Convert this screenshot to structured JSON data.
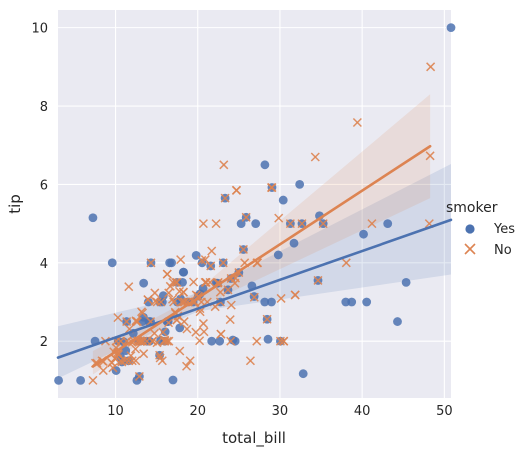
{
  "chart_data": {
    "type": "scatter",
    "xlabel": "total_bill",
    "ylabel": "tip",
    "xlim": [
      3.0,
      50.81
    ],
    "ylim": [
      0.55,
      10.45
    ],
    "xticks": [
      10,
      20,
      30,
      40,
      50
    ],
    "yticks": [
      2,
      4,
      6,
      8,
      10
    ],
    "grid": true,
    "legend": {
      "title": "smoker",
      "placement": "right"
    },
    "series": [
      {
        "name": "Yes",
        "marker": "circle",
        "color": "#4c72b0",
        "fit": {
          "intercept": 1.36,
          "slope": 0.0735
        },
        "ci_band": [
          [
            3.0,
            1.05,
            2.38
          ],
          [
            20.0,
            2.76,
            3.22
          ],
          [
            50.81,
            3.7,
            6.52
          ]
        ],
        "points": [
          [
            3.07,
            1.0
          ],
          [
            5.75,
            1.0
          ],
          [
            7.25,
            5.15
          ],
          [
            7.51,
            2.0
          ],
          [
            9.6,
            4.0
          ],
          [
            10.07,
            1.25
          ],
          [
            10.33,
            2.0
          ],
          [
            10.59,
            1.61
          ],
          [
            10.77,
            1.47
          ],
          [
            11.24,
            1.76
          ],
          [
            11.35,
            2.5
          ],
          [
            11.59,
            1.5
          ],
          [
            12.16,
            2.2
          ],
          [
            12.6,
            1.0
          ],
          [
            12.9,
            1.1
          ],
          [
            13.0,
            2.0
          ],
          [
            13.27,
            2.5
          ],
          [
            13.42,
            3.48
          ],
          [
            13.81,
            2.0
          ],
          [
            14.0,
            3.0
          ],
          [
            14.07,
            2.5
          ],
          [
            14.15,
            2.0
          ],
          [
            14.26,
            2.5
          ],
          [
            14.31,
            4.0
          ],
          [
            15.36,
            1.64
          ],
          [
            15.38,
            3.0
          ],
          [
            15.48,
            2.02
          ],
          [
            15.69,
            3.0
          ],
          [
            16.0,
            2.0
          ],
          [
            16.04,
            2.24
          ],
          [
            16.27,
            2.5
          ],
          [
            16.4,
            2.5
          ],
          [
            16.58,
            4.0
          ],
          [
            16.82,
            4.0
          ],
          [
            17.47,
            3.5
          ],
          [
            17.51,
            3.0
          ],
          [
            17.92,
            3.08
          ],
          [
            18.15,
            3.5
          ],
          [
            18.24,
            3.76
          ],
          [
            18.29,
            3.76
          ],
          [
            18.78,
            3.0
          ],
          [
            19.44,
            3.0
          ],
          [
            19.81,
            4.19
          ],
          [
            20.29,
            3.21
          ],
          [
            20.53,
            4.0
          ],
          [
            20.65,
            3.35
          ],
          [
            21.58,
            3.92
          ],
          [
            22.23,
            3.48
          ],
          [
            22.42,
            3.48
          ],
          [
            22.76,
            3.0
          ],
          [
            23.33,
            5.65
          ],
          [
            23.68,
            3.31
          ],
          [
            24.27,
            2.03
          ],
          [
            24.55,
            2.0
          ],
          [
            25.0,
            3.75
          ],
          [
            25.28,
            5.0
          ],
          [
            25.56,
            4.34
          ],
          [
            25.89,
            5.16
          ],
          [
            26.59,
            3.41
          ],
          [
            26.86,
            3.14
          ],
          [
            27.05,
            5.0
          ],
          [
            28.15,
            3.0
          ],
          [
            28.17,
            6.5
          ],
          [
            28.44,
            2.56
          ],
          [
            28.97,
            3.0
          ],
          [
            29.03,
            5.92
          ],
          [
            29.8,
            4.2
          ],
          [
            30.06,
            2.0
          ],
          [
            30.4,
            5.6
          ],
          [
            31.27,
            5.0
          ],
          [
            31.71,
            4.5
          ],
          [
            32.4,
            6.0
          ],
          [
            32.68,
            5.0
          ],
          [
            32.83,
            1.17
          ],
          [
            34.63,
            3.55
          ],
          [
            34.81,
            5.2
          ],
          [
            35.26,
            5.0
          ],
          [
            38.01,
            3.0
          ],
          [
            38.73,
            3.0
          ],
          [
            40.17,
            4.73
          ],
          [
            40.55,
            3.0
          ],
          [
            43.11,
            5.0
          ],
          [
            44.3,
            2.5
          ],
          [
            45.35,
            3.5
          ],
          [
            50.81,
            10.0
          ],
          [
            21.7,
            2.0
          ],
          [
            24.06,
            3.6
          ],
          [
            12.74,
            2.01
          ],
          [
            15.81,
            3.16
          ],
          [
            23.1,
            4.0
          ],
          [
            22.67,
            2.0
          ],
          [
            28.55,
            2.05
          ],
          [
            13.39,
            2.61
          ],
          [
            17.81,
            2.34
          ],
          [
            11.02,
            1.98
          ],
          [
            20.08,
            3.15
          ],
          [
            16.99,
            1.01
          ]
        ]
      },
      {
        "name": "No",
        "marker": "x",
        "color": "#dd8452",
        "fit": {
          "intercept": 0.36,
          "slope": 0.137
        },
        "ci_band": [
          [
            7.25,
            1.15,
            1.75
          ],
          [
            18.0,
            2.65,
            2.95
          ],
          [
            48.27,
            5.65,
            8.3
          ]
        ],
        "points": [
          [
            7.25,
            1.0
          ],
          [
            8.35,
            1.5
          ],
          [
            8.51,
            1.25
          ],
          [
            8.52,
            1.48
          ],
          [
            8.77,
            2.0
          ],
          [
            9.55,
            1.45
          ],
          [
            9.68,
            1.32
          ],
          [
            9.78,
            1.73
          ],
          [
            9.94,
            1.56
          ],
          [
            10.07,
            1.83
          ],
          [
            10.27,
            1.71
          ],
          [
            10.29,
            2.6
          ],
          [
            10.33,
            1.67
          ],
          [
            10.34,
            1.66
          ],
          [
            10.63,
            2.0
          ],
          [
            11.17,
            1.5
          ],
          [
            11.38,
            2.0
          ],
          [
            11.61,
            3.39
          ],
          [
            11.87,
            1.63
          ],
          [
            12.02,
            1.97
          ],
          [
            12.03,
            1.5
          ],
          [
            12.43,
            1.8
          ],
          [
            12.46,
            1.5
          ],
          [
            12.54,
            2.5
          ],
          [
            12.69,
            2.0
          ],
          [
            12.74,
            2.01
          ],
          [
            13.03,
            2.0
          ],
          [
            13.13,
            2.0
          ],
          [
            13.28,
            2.72
          ],
          [
            13.37,
            2.0
          ],
          [
            13.81,
            2.0
          ],
          [
            13.94,
            3.06
          ],
          [
            14.48,
            2.0
          ],
          [
            14.52,
            2.0
          ],
          [
            14.73,
            2.2
          ],
          [
            14.78,
            3.23
          ],
          [
            14.83,
            3.02
          ],
          [
            15.04,
            1.96
          ],
          [
            15.06,
            3.0
          ],
          [
            15.42,
            1.57
          ],
          [
            15.53,
            3.0
          ],
          [
            15.77,
            2.23
          ],
          [
            16.29,
            3.71
          ],
          [
            16.31,
            2.0
          ],
          [
            16.45,
            2.47
          ],
          [
            16.49,
            2.0
          ],
          [
            16.97,
            3.5
          ],
          [
            17.07,
            3.0
          ],
          [
            17.26,
            2.74
          ],
          [
            17.29,
            2.71
          ],
          [
            17.46,
            2.54
          ],
          [
            17.59,
            2.64
          ],
          [
            17.78,
            3.27
          ],
          [
            17.92,
            4.08
          ],
          [
            18.04,
            3.0
          ],
          [
            18.26,
            3.25
          ],
          [
            18.35,
            2.5
          ],
          [
            18.43,
            3.0
          ],
          [
            18.64,
            1.36
          ],
          [
            18.69,
            2.31
          ],
          [
            19.08,
            1.5
          ],
          [
            19.49,
            3.51
          ],
          [
            19.65,
            3.0
          ],
          [
            19.77,
            2.23
          ],
          [
            19.82,
            3.18
          ],
          [
            20.23,
            2.01
          ],
          [
            20.27,
            2.83
          ],
          [
            20.45,
            3.0
          ],
          [
            20.69,
            2.45
          ],
          [
            20.76,
            2.24
          ],
          [
            20.92,
            4.08
          ],
          [
            21.01,
            3.5
          ],
          [
            21.16,
            3.0
          ],
          [
            21.5,
            3.5
          ],
          [
            22.42,
            3.48
          ],
          [
            22.49,
            3.5
          ],
          [
            22.75,
            3.25
          ],
          [
            22.82,
            2.18
          ],
          [
            23.17,
            6.5
          ],
          [
            23.33,
            5.65
          ],
          [
            23.95,
            2.55
          ],
          [
            24.01,
            2.0
          ],
          [
            24.08,
            2.92
          ],
          [
            24.52,
            3.48
          ],
          [
            24.59,
            3.61
          ],
          [
            24.71,
            5.85
          ],
          [
            25.71,
            4.0
          ],
          [
            26.41,
            1.5
          ],
          [
            26.88,
            3.12
          ],
          [
            27.2,
            4.0
          ],
          [
            27.28,
            4.0
          ],
          [
            28.97,
            5.92
          ],
          [
            29.85,
            5.14
          ],
          [
            30.14,
            3.09
          ],
          [
            30.46,
            2.0
          ],
          [
            31.85,
            3.18
          ],
          [
            32.68,
            5.0
          ],
          [
            34.3,
            6.7
          ],
          [
            35.26,
            5.0
          ],
          [
            39.42,
            7.58
          ],
          [
            41.19,
            5.0
          ],
          [
            48.17,
            5.0
          ],
          [
            48.27,
            6.73
          ],
          [
            48.33,
            9.0
          ],
          [
            7.74,
            1.44
          ],
          [
            7.56,
            1.44
          ],
          [
            10.65,
            1.5
          ],
          [
            12.48,
            2.52
          ],
          [
            15.98,
            2.03
          ],
          [
            16.93,
            3.07
          ],
          [
            18.29,
            3.0
          ],
          [
            20.49,
            4.06
          ],
          [
            21.58,
            3.92
          ],
          [
            24.06,
            3.6
          ],
          [
            25.89,
            5.16
          ],
          [
            27.18,
            2.0
          ],
          [
            29.03,
            5.92
          ],
          [
            31.27,
            5.0
          ],
          [
            34.63,
            3.55
          ],
          [
            38.07,
            4.0
          ],
          [
            15.95,
            2.0
          ],
          [
            13.42,
            1.68
          ],
          [
            10.09,
            2.0
          ],
          [
            11.69,
            2.31
          ],
          [
            14.26,
            2.5
          ],
          [
            16.47,
            3.23
          ],
          [
            20.9,
            3.5
          ],
          [
            21.01,
            3.5
          ],
          [
            22.12,
            2.88
          ],
          [
            25.56,
            4.34
          ],
          [
            19.44,
            3.0
          ],
          [
            17.31,
            3.5
          ],
          [
            16.0,
            2.0
          ],
          [
            13.16,
            2.75
          ],
          [
            9.94,
            1.56
          ],
          [
            11.59,
            1.5
          ],
          [
            20.08,
            3.15
          ],
          [
            28.44,
            2.56
          ],
          [
            12.26,
            2.0
          ],
          [
            9.55,
            1.45
          ],
          [
            13.0,
            2.0
          ],
          [
            16.66,
            3.4
          ],
          [
            10.77,
            1.47
          ],
          [
            15.36,
            1.64
          ],
          [
            17.82,
            1.75
          ],
          [
            13.0,
            2.0
          ],
          [
            24.71,
            5.85
          ],
          [
            21.7,
            4.3
          ],
          [
            22.82,
            2.18
          ],
          [
            18.78,
            3.0
          ],
          [
            12.9,
            1.1
          ],
          [
            30.06,
            2.0
          ],
          [
            25.0,
            3.75
          ],
          [
            23.1,
            4.0
          ],
          [
            17.47,
            3.5
          ],
          [
            14.31,
            4.0
          ],
          [
            20.29,
            2.75
          ],
          [
            16.29,
            3.71
          ],
          [
            20.69,
            5.0
          ],
          [
            30.46,
            2.0
          ],
          [
            18.26,
            3.25
          ],
          [
            23.68,
            3.31
          ],
          [
            22.76,
            3.0
          ],
          [
            12.66,
            2.5
          ],
          [
            11.35,
            2.5
          ],
          [
            17.46,
            2.54
          ],
          [
            22.23,
            5.0
          ],
          [
            15.69,
            1.5
          ],
          [
            31.85,
            3.18
          ],
          [
            13.94,
            3.06
          ]
        ]
      }
    ]
  }
}
